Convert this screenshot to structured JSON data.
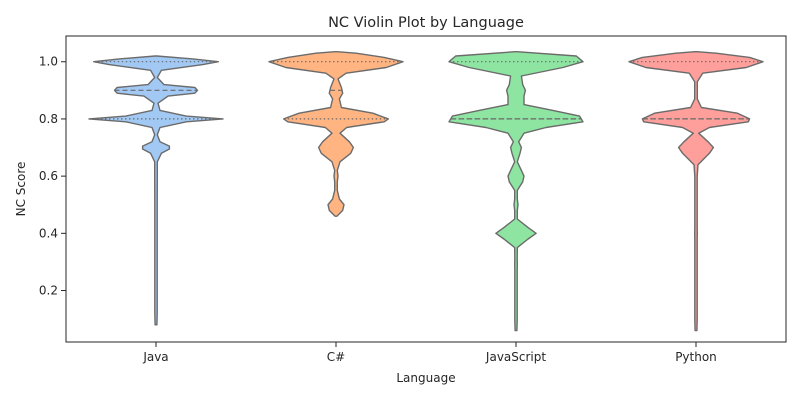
{
  "chart_data": {
    "type": "violin",
    "title": "NC Violin Plot by Language",
    "xlabel": "Language",
    "ylabel": "NC Score",
    "categories": [
      "Java",
      "C#",
      "JavaScript",
      "Python"
    ],
    "ylim": [
      0.02,
      1.09
    ],
    "yticks": [
      0.2,
      0.4,
      0.6,
      0.8,
      1.0
    ],
    "ytick_labels": [
      "0.2",
      "0.4",
      "0.6",
      "0.8",
      "1.0"
    ],
    "grid": false,
    "legend": "none",
    "colors": [
      "#a1c9f4",
      "#ffb482",
      "#8de5a1",
      "#ff9f9b"
    ],
    "edge_color": "#6b6b6b",
    "series": [
      {
        "category": "Java",
        "range": [
          0.08,
          1.0
        ],
        "quartiles": [
          0.8,
          0.9,
          1.0
        ],
        "density": [
          [
            0.08,
            0.0
          ],
          [
            0.12,
            0.01
          ],
          [
            0.3,
            0.01
          ],
          [
            0.5,
            0.01
          ],
          [
            0.6,
            0.02
          ],
          [
            0.65,
            0.02
          ],
          [
            0.68,
            0.08
          ],
          [
            0.695,
            0.2
          ],
          [
            0.705,
            0.2
          ],
          [
            0.72,
            0.06
          ],
          [
            0.745,
            0.02
          ],
          [
            0.77,
            0.06
          ],
          [
            0.79,
            0.45
          ],
          [
            0.8,
            1.0
          ],
          [
            0.81,
            0.45
          ],
          [
            0.83,
            0.06
          ],
          [
            0.855,
            0.03
          ],
          [
            0.88,
            0.18
          ],
          [
            0.89,
            0.58
          ],
          [
            0.9,
            0.62
          ],
          [
            0.91,
            0.58
          ],
          [
            0.92,
            0.12
          ],
          [
            0.945,
            0.02
          ],
          [
            0.97,
            0.08
          ],
          [
            0.99,
            0.7
          ],
          [
            1.0,
            0.93
          ],
          [
            1.01,
            0.55
          ],
          [
            1.02,
            0.0
          ]
        ]
      },
      {
        "category": "C#",
        "range": [
          0.46,
          1.0
        ],
        "quartiles": [
          0.8,
          0.9,
          1.0
        ],
        "density": [
          [
            0.46,
            0.0
          ],
          [
            0.48,
            0.1
          ],
          [
            0.5,
            0.12
          ],
          [
            0.52,
            0.05
          ],
          [
            0.55,
            0.02
          ],
          [
            0.58,
            0.02
          ],
          [
            0.6,
            0.03
          ],
          [
            0.62,
            0.02
          ],
          [
            0.65,
            0.06
          ],
          [
            0.68,
            0.22
          ],
          [
            0.7,
            0.26
          ],
          [
            0.72,
            0.2
          ],
          [
            0.75,
            0.06
          ],
          [
            0.77,
            0.16
          ],
          [
            0.79,
            0.72
          ],
          [
            0.8,
            0.78
          ],
          [
            0.82,
            0.55
          ],
          [
            0.84,
            0.08
          ],
          [
            0.87,
            0.05
          ],
          [
            0.89,
            0.1
          ],
          [
            0.91,
            0.08
          ],
          [
            0.94,
            0.03
          ],
          [
            0.96,
            0.15
          ],
          [
            0.98,
            0.75
          ],
          [
            1.0,
            1.0
          ],
          [
            1.015,
            0.72
          ],
          [
            1.03,
            0.3
          ],
          [
            1.035,
            0.0
          ]
        ]
      },
      {
        "category": "JavaScript",
        "range": [
          0.06,
          1.0
        ],
        "quartiles": [
          0.8,
          0.8,
          1.0
        ],
        "density": [
          [
            0.06,
            0.0
          ],
          [
            0.1,
            0.01
          ],
          [
            0.2,
            0.01
          ],
          [
            0.27,
            0.01
          ],
          [
            0.29,
            0.02
          ],
          [
            0.31,
            0.01
          ],
          [
            0.35,
            0.02
          ],
          [
            0.38,
            0.18
          ],
          [
            0.4,
            0.3
          ],
          [
            0.42,
            0.18
          ],
          [
            0.45,
            0.02
          ],
          [
            0.48,
            0.02
          ],
          [
            0.5,
            0.03
          ],
          [
            0.52,
            0.02
          ],
          [
            0.55,
            0.02
          ],
          [
            0.58,
            0.1
          ],
          [
            0.6,
            0.12
          ],
          [
            0.62,
            0.08
          ],
          [
            0.65,
            0.02
          ],
          [
            0.68,
            0.06
          ],
          [
            0.7,
            0.08
          ],
          [
            0.72,
            0.04
          ],
          [
            0.75,
            0.12
          ],
          [
            0.77,
            0.45
          ],
          [
            0.79,
            1.0
          ],
          [
            0.81,
            0.95
          ],
          [
            0.83,
            0.55
          ],
          [
            0.85,
            0.12
          ],
          [
            0.88,
            0.12
          ],
          [
            0.9,
            0.14
          ],
          [
            0.92,
            0.1
          ],
          [
            0.95,
            0.08
          ],
          [
            0.98,
            0.7
          ],
          [
            1.0,
            1.0
          ],
          [
            1.02,
            0.9
          ],
          [
            1.035,
            0.0
          ]
        ]
      },
      {
        "category": "Python",
        "range": [
          0.06,
          1.0
        ],
        "quartiles": [
          0.8,
          0.8,
          1.0
        ],
        "density": [
          [
            0.06,
            0.0
          ],
          [
            0.1,
            0.01
          ],
          [
            0.3,
            0.01
          ],
          [
            0.38,
            0.01
          ],
          [
            0.4,
            0.02
          ],
          [
            0.42,
            0.01
          ],
          [
            0.5,
            0.01
          ],
          [
            0.6,
            0.01
          ],
          [
            0.64,
            0.03
          ],
          [
            0.68,
            0.2
          ],
          [
            0.7,
            0.26
          ],
          [
            0.72,
            0.18
          ],
          [
            0.75,
            0.04
          ],
          [
            0.77,
            0.2
          ],
          [
            0.79,
            0.78
          ],
          [
            0.8,
            0.8
          ],
          [
            0.82,
            0.62
          ],
          [
            0.84,
            0.08
          ],
          [
            0.87,
            0.02
          ],
          [
            0.9,
            0.02
          ],
          [
            0.93,
            0.02
          ],
          [
            0.96,
            0.1
          ],
          [
            0.98,
            0.75
          ],
          [
            1.0,
            1.0
          ],
          [
            1.015,
            0.8
          ],
          [
            1.03,
            0.3
          ],
          [
            1.035,
            0.0
          ]
        ]
      }
    ]
  }
}
